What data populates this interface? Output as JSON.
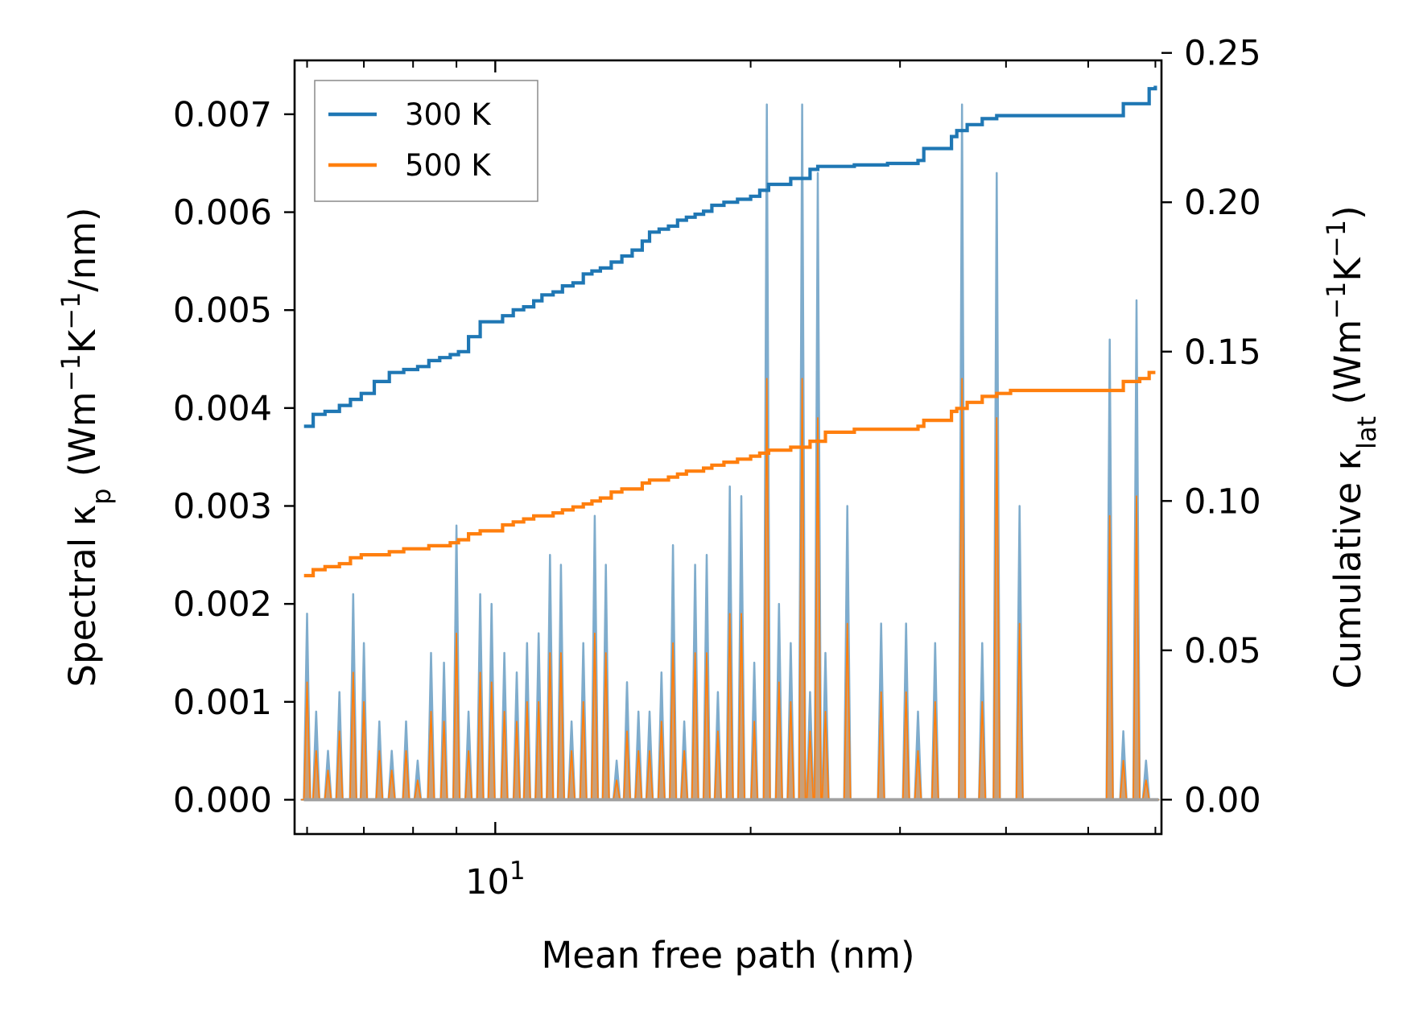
{
  "chart_data": {
    "type": "line",
    "xscale": "log",
    "xlim": [
      5.8,
      61
    ],
    "xlabel": "Mean free path (nm)",
    "x_major_tick_label": {
      "base": "10",
      "exponent": "1",
      "value": 10
    },
    "y_left": {
      "label_parts": [
        "Spectral κ",
        "p",
        " (Wm",
        "−1",
        "K",
        "−1",
        "/nm)"
      ],
      "ylim": [
        -0.00035,
        0.00755
      ],
      "ticks": [
        0.0,
        0.001,
        0.002,
        0.003,
        0.004,
        0.005,
        0.006,
        0.007
      ],
      "tick_labels": [
        "0.000",
        "0.001",
        "0.002",
        "0.003",
        "0.004",
        "0.005",
        "0.006",
        "0.007"
      ]
    },
    "y_right": {
      "label_parts": [
        "Cumulative κ",
        "lat",
        " (Wm",
        "−1",
        "K",
        "−1",
        ")"
      ],
      "ylim": [
        -0.0115,
        0.2475
      ],
      "ticks": [
        0.0,
        0.05,
        0.1,
        0.15,
        0.2,
        0.25
      ],
      "tick_labels": [
        "0.00",
        "0.05",
        "0.10",
        "0.15",
        "0.20",
        "0.25"
      ]
    },
    "legend": {
      "position": "top-left",
      "entries": [
        "300 K",
        "500 K"
      ]
    },
    "colors": {
      "s300": "#1f77b4",
      "s500": "#ff7f0e",
      "fill300": "#5b9bd5",
      "fill500": "#c8a07a",
      "edge": "#7faccc"
    },
    "series": [
      {
        "name": "300 K",
        "axis": "right",
        "x": [
          5.95,
          6.1,
          6.3,
          6.55,
          6.75,
          6.95,
          7.2,
          7.5,
          7.8,
          8.1,
          8.35,
          8.6,
          8.85,
          9.05,
          9.3,
          9.6,
          9.9,
          10.2,
          10.5,
          10.8,
          11.1,
          11.35,
          11.7,
          12.0,
          12.35,
          12.7,
          13.0,
          13.3,
          13.7,
          14.1,
          14.5,
          14.9,
          15.2,
          15.6,
          16.0,
          16.4,
          16.8,
          17.2,
          17.6,
          18.0,
          18.6,
          19.3,
          20.0,
          20.5,
          21.0,
          21.8,
          22.3,
          22.8,
          23.5,
          24.0,
          24.5,
          26.5,
          29.0,
          30.5,
          31.5,
          32.0,
          34.5,
          35.0,
          36.0,
          37.5,
          39.0,
          40.5,
          45.0,
          50.0,
          55.0,
          57.5,
          59.0,
          60.0
        ],
        "values": [
          0.125,
          0.129,
          0.13,
          0.132,
          0.134,
          0.136,
          0.14,
          0.143,
          0.144,
          0.145,
          0.147,
          0.148,
          0.149,
          0.15,
          0.155,
          0.16,
          0.16,
          0.162,
          0.164,
          0.165,
          0.167,
          0.169,
          0.17,
          0.172,
          0.173,
          0.176,
          0.177,
          0.178,
          0.18,
          0.182,
          0.184,
          0.187,
          0.19,
          0.191,
          0.192,
          0.194,
          0.195,
          0.196,
          0.197,
          0.199,
          0.2,
          0.201,
          0.202,
          0.204,
          0.206,
          0.206,
          0.208,
          0.208,
          0.211,
          0.212,
          0.212,
          0.2125,
          0.213,
          0.213,
          0.214,
          0.218,
          0.222,
          0.224,
          0.226,
          0.228,
          0.229,
          0.229,
          0.229,
          0.229,
          0.233,
          0.233,
          0.238,
          0.239
        ]
      },
      {
        "name": "500 K",
        "axis": "right",
        "x": [
          5.95,
          6.1,
          6.3,
          6.55,
          6.75,
          6.95,
          7.2,
          7.5,
          7.8,
          8.1,
          8.35,
          8.6,
          8.85,
          9.05,
          9.3,
          9.6,
          9.9,
          10.2,
          10.5,
          10.8,
          11.1,
          11.35,
          11.7,
          12.0,
          12.35,
          12.7,
          13.0,
          13.3,
          13.7,
          14.1,
          14.5,
          14.9,
          15.2,
          15.6,
          16.0,
          16.4,
          16.8,
          17.2,
          17.6,
          18.0,
          18.6,
          19.3,
          20.0,
          20.5,
          21.0,
          21.8,
          22.3,
          22.8,
          23.5,
          24.0,
          24.5,
          26.5,
          29.0,
          30.5,
          31.5,
          32.0,
          34.5,
          35.0,
          36.0,
          37.5,
          39.0,
          40.5,
          45.0,
          50.0,
          55.0,
          57.5,
          59.0,
          60.0
        ],
        "values": [
          0.075,
          0.077,
          0.078,
          0.079,
          0.081,
          0.082,
          0.082,
          0.083,
          0.084,
          0.084,
          0.085,
          0.085,
          0.086,
          0.087,
          0.089,
          0.09,
          0.09,
          0.092,
          0.093,
          0.094,
          0.095,
          0.095,
          0.096,
          0.097,
          0.098,
          0.099,
          0.1,
          0.101,
          0.103,
          0.104,
          0.104,
          0.106,
          0.107,
          0.107,
          0.108,
          0.109,
          0.11,
          0.11,
          0.111,
          0.112,
          0.113,
          0.114,
          0.115,
          0.116,
          0.117,
          0.117,
          0.118,
          0.118,
          0.12,
          0.12,
          0.123,
          0.124,
          0.124,
          0.124,
          0.125,
          0.127,
          0.13,
          0.131,
          0.133,
          0.135,
          0.136,
          0.137,
          0.137,
          0.137,
          0.14,
          0.141,
          0.143,
          0.143
        ]
      }
    ],
    "spectral_300K": {
      "x": [
        6.0,
        6.15,
        6.35,
        6.55,
        6.8,
        7.0,
        7.3,
        7.55,
        7.85,
        8.1,
        8.4,
        8.7,
        9.0,
        9.3,
        9.6,
        9.9,
        10.25,
        10.6,
        10.9,
        11.25,
        11.6,
        11.95,
        12.3,
        12.7,
        13.1,
        13.5,
        13.9,
        14.3,
        14.75,
        15.2,
        15.7,
        16.2,
        16.7,
        17.2,
        17.75,
        18.3,
        18.9,
        19.5,
        20.2,
        20.9,
        21.6,
        22.3,
        23.0,
        23.5,
        24.0,
        24.5,
        26.0,
        28.5,
        30.5,
        31.5,
        33.0,
        35.5,
        37.5,
        39.0,
        41.5,
        53.0,
        55.0,
        57.0,
        58.5,
        60.0
      ],
      "values": [
        0.0019,
        0.0009,
        0.0005,
        0.0011,
        0.0021,
        0.0016,
        0.0008,
        0.0005,
        0.0008,
        0.0004,
        0.0015,
        0.0014,
        0.0028,
        0.0009,
        0.0021,
        0.002,
        0.0015,
        0.0013,
        0.0016,
        0.0017,
        0.0025,
        0.0024,
        0.0008,
        0.0016,
        0.0029,
        0.0024,
        0.0004,
        0.0012,
        0.0009,
        0.0009,
        0.0013,
        0.0026,
        0.0008,
        0.0024,
        0.0025,
        0.0011,
        0.0032,
        0.0031,
        0.0014,
        0.0071,
        0.002,
        0.0016,
        0.0071,
        0.0011,
        0.0064,
        0.0015,
        0.003,
        0.0018,
        0.0018,
        0.0009,
        0.0016,
        0.0071,
        0.0016,
        0.0064,
        0.003,
        0.0047,
        0.0007,
        0.0051,
        0.0004,
        0.0
      ]
    },
    "spectral_500K": {
      "x": [
        6.0,
        6.15,
        6.35,
        6.55,
        6.8,
        7.0,
        7.3,
        7.55,
        7.85,
        8.1,
        8.4,
        8.7,
        9.0,
        9.3,
        9.6,
        9.9,
        10.25,
        10.6,
        10.9,
        11.25,
        11.6,
        11.95,
        12.3,
        12.7,
        13.1,
        13.5,
        13.9,
        14.3,
        14.75,
        15.2,
        15.7,
        16.2,
        16.7,
        17.2,
        17.75,
        18.3,
        18.9,
        19.5,
        20.2,
        20.9,
        21.6,
        22.3,
        23.0,
        23.5,
        24.0,
        24.5,
        26.0,
        28.5,
        30.5,
        31.5,
        33.0,
        35.5,
        37.5,
        39.0,
        41.5,
        53.0,
        55.0,
        57.0,
        58.5,
        60.0
      ],
      "values": [
        0.0012,
        0.0005,
        0.0003,
        0.0007,
        0.0013,
        0.001,
        0.0005,
        0.0003,
        0.0005,
        0.0002,
        0.0009,
        0.0008,
        0.0017,
        0.0005,
        0.0013,
        0.0012,
        0.0009,
        0.0008,
        0.001,
        0.001,
        0.0015,
        0.0015,
        0.0005,
        0.001,
        0.0017,
        0.0015,
        0.0002,
        0.0007,
        0.0005,
        0.0005,
        0.0008,
        0.0016,
        0.0005,
        0.0015,
        0.0015,
        0.0007,
        0.0019,
        0.0019,
        0.0008,
        0.0043,
        0.0012,
        0.001,
        0.0043,
        0.0007,
        0.0039,
        0.0009,
        0.0018,
        0.0011,
        0.0011,
        0.0005,
        0.001,
        0.0043,
        0.001,
        0.0039,
        0.0018,
        0.0029,
        0.0004,
        0.0031,
        0.0002,
        0.0
      ]
    }
  }
}
